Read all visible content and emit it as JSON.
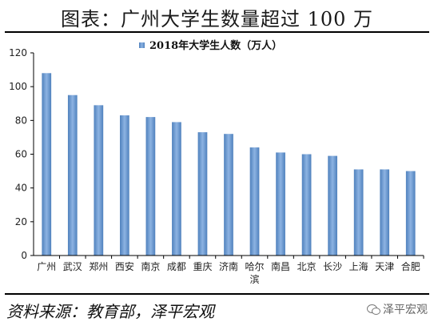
{
  "header": {
    "title": "图表：广州大学生数量超过 100 万"
  },
  "footer": {
    "source": "资料来源：教育部，泽平宏观",
    "watermark": "泽平宏观",
    "watermark_icon": "wechat-icon"
  },
  "colors": {
    "bar": "#4f81bd",
    "bar_light": "#8db3e2",
    "axis": "#000000"
  },
  "chart_data": {
    "type": "bar",
    "categories": [
      "广州",
      "武汉",
      "郑州",
      "西安",
      "南京",
      "成都",
      "重庆",
      "济南",
      "哈尔滨",
      "南昌",
      "北京",
      "长沙",
      "上海",
      "天津",
      "合肥"
    ],
    "series": [
      {
        "name": "2018年大学生人数（万人）",
        "values": [
          108,
          95,
          89,
          83,
          82,
          79,
          73,
          72,
          64,
          61,
          60,
          59,
          51,
          51,
          50
        ]
      }
    ],
    "ylim": [
      0,
      120
    ],
    "yticks": [
      0,
      20,
      40,
      60,
      80,
      100,
      120
    ],
    "grid": false,
    "legend": "top-center"
  }
}
